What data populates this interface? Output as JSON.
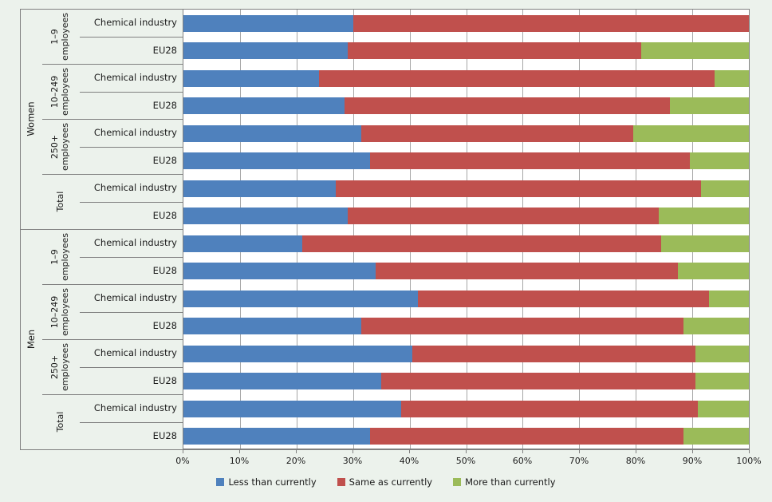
{
  "figure": {
    "background": "#ECF2EC",
    "plot_background": "#FFFFFF",
    "gridline_color": "#A6A6A6",
    "axis_line_color": "#808080",
    "text_color": "#1A1A1A"
  },
  "chart_data": {
    "type": "bar",
    "subtype": "horizontal-stacked-100",
    "title": "",
    "xlabel": "",
    "ylabel": "",
    "x_axis": {
      "min": 0,
      "max": 100,
      "ticks": [
        "0%",
        "10%",
        "20%",
        "30%",
        "40%",
        "50%",
        "60%",
        "70%",
        "80%",
        "90%",
        "100%"
      ],
      "grid": true
    },
    "series": [
      {
        "name": "Less than currently",
        "color": "#4F81BD"
      },
      {
        "name": "Same as currently",
        "color": "#C0504D"
      },
      {
        "name": "More than currently",
        "color": "#9BBB59"
      }
    ],
    "legend": {
      "position": "bottom"
    },
    "groups": [
      {
        "label": "Women",
        "subgroups": [
          {
            "label": "1–9 employees",
            "bars": [
              {
                "label": "Chemical industry",
                "values": [
                  30,
                  70,
                  0
                ]
              },
              {
                "label": "EU28",
                "values": [
                  29,
                  52,
                  19
                ]
              }
            ]
          },
          {
            "label": "10–249 employees",
            "bars": [
              {
                "label": "Chemical industry",
                "values": [
                  24,
                  70,
                  6
                ]
              },
              {
                "label": "EU28",
                "values": [
                  28.5,
                  57.5,
                  14
                ]
              }
            ]
          },
          {
            "label": "250+ employees",
            "bars": [
              {
                "label": "Chemical industry",
                "values": [
                  31.5,
                  48,
                  20.5
                ]
              },
              {
                "label": "EU28",
                "values": [
                  33,
                  56.5,
                  10.5
                ]
              }
            ]
          },
          {
            "label": "Total",
            "bars": [
              {
                "label": "Chemical industry",
                "values": [
                  27,
                  64.5,
                  8.5
                ]
              },
              {
                "label": "EU28",
                "values": [
                  29,
                  55,
                  16
                ]
              }
            ]
          }
        ]
      },
      {
        "label": "Men",
        "subgroups": [
          {
            "label": "1–9 employees",
            "bars": [
              {
                "label": "Chemical industry",
                "values": [
                  21,
                  63.5,
                  15.5
                ]
              },
              {
                "label": "EU28",
                "values": [
                  34,
                  53.5,
                  12.5
                ]
              }
            ]
          },
          {
            "label": "10–249 employees",
            "bars": [
              {
                "label": "Chemical industry",
                "values": [
                  41.5,
                  51.5,
                  7
                ]
              },
              {
                "label": "EU28",
                "values": [
                  31.5,
                  57,
                  11.5
                ]
              }
            ]
          },
          {
            "label": "250+ employees",
            "bars": [
              {
                "label": "Chemical industry",
                "values": [
                  40.5,
                  50,
                  9.5
                ]
              },
              {
                "label": "EU28",
                "values": [
                  35,
                  55.5,
                  9.5
                ]
              }
            ]
          },
          {
            "label": "Total",
            "bars": [
              {
                "label": "Chemical industry",
                "values": [
                  38.5,
                  52.5,
                  9
                ]
              },
              {
                "label": "EU28",
                "values": [
                  33,
                  55.5,
                  11.5
                ]
              }
            ]
          }
        ]
      }
    ]
  }
}
